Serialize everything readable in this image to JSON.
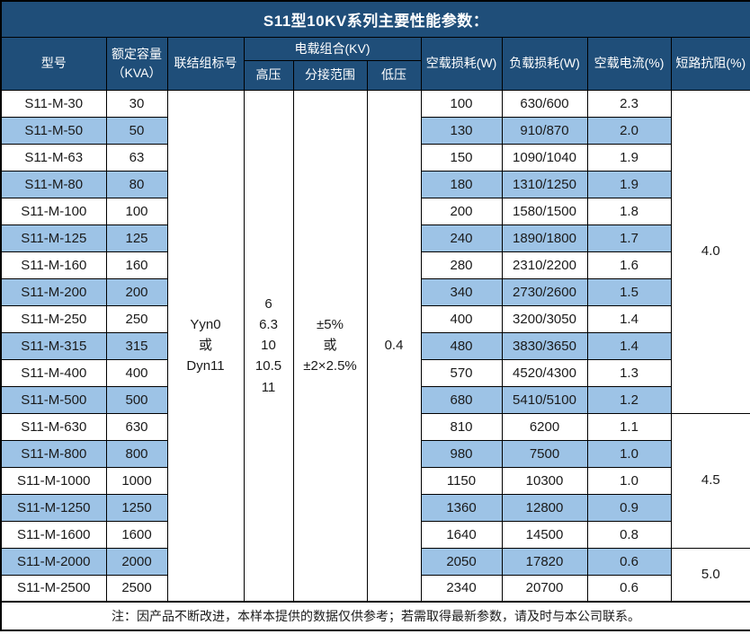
{
  "title": "S11型10KV系列主要性能参数：",
  "colors": {
    "header_bg": "#1F4E79",
    "row_alt_bg": "#9DC3E6",
    "border": "#000000",
    "header_text": "#FFFFFF"
  },
  "header": {
    "model": "型号",
    "capacity": "额定容量\n（KVA）",
    "connection": "联结组标号",
    "voltage_group": "电载组合(KV)",
    "high_voltage": "高压",
    "tap_range": "分接范围",
    "low_voltage": "低压",
    "no_load_loss": "空载损耗(W)",
    "load_loss": "负载损耗(W)",
    "no_load_current": "空载电流(%)",
    "impedance": "短路抗阻(%)"
  },
  "merged": {
    "connection": "Yyn0\n或\nDyn11",
    "high_voltage": "6\n6.3\n10\n10.5\n11",
    "tap_range": "±5%\n或\n±2×2.5%",
    "low_voltage": "0.4"
  },
  "impedance_groups": [
    {
      "value": "4.0",
      "rows": 12
    },
    {
      "value": "4.5",
      "rows": 5
    },
    {
      "value": "5.0",
      "rows": 2
    }
  ],
  "rows": [
    {
      "model": "S11-M-30",
      "capacity": "30",
      "no_load_loss": "100",
      "load_loss": "630/600",
      "no_load_current": "2.3"
    },
    {
      "model": "S11-M-50",
      "capacity": "50",
      "no_load_loss": "130",
      "load_loss": "910/870",
      "no_load_current": "2.0"
    },
    {
      "model": "S11-M-63",
      "capacity": "63",
      "no_load_loss": "150",
      "load_loss": "1090/1040",
      "no_load_current": "1.9"
    },
    {
      "model": "S11-M-80",
      "capacity": "80",
      "no_load_loss": "180",
      "load_loss": "1310/1250",
      "no_load_current": "1.9"
    },
    {
      "model": "S11-M-100",
      "capacity": "100",
      "no_load_loss": "200",
      "load_loss": "1580/1500",
      "no_load_current": "1.8"
    },
    {
      "model": "S11-M-125",
      "capacity": "125",
      "no_load_loss": "240",
      "load_loss": "1890/1800",
      "no_load_current": "1.7"
    },
    {
      "model": "S11-M-160",
      "capacity": "160",
      "no_load_loss": "280",
      "load_loss": "2310/2200",
      "no_load_current": "1.6"
    },
    {
      "model": "S11-M-200",
      "capacity": "200",
      "no_load_loss": "340",
      "load_loss": "2730/2600",
      "no_load_current": "1.5"
    },
    {
      "model": "S11-M-250",
      "capacity": "250",
      "no_load_loss": "400",
      "load_loss": "3200/3050",
      "no_load_current": "1.4"
    },
    {
      "model": "S11-M-315",
      "capacity": "315",
      "no_load_loss": "480",
      "load_loss": "3830/3650",
      "no_load_current": "1.4"
    },
    {
      "model": "S11-M-400",
      "capacity": "400",
      "no_load_loss": "570",
      "load_loss": "4520/4300",
      "no_load_current": "1.3"
    },
    {
      "model": "S11-M-500",
      "capacity": "500",
      "no_load_loss": "680",
      "load_loss": "5410/5100",
      "no_load_current": "1.2"
    },
    {
      "model": "S11-M-630",
      "capacity": "630",
      "no_load_loss": "810",
      "load_loss": "6200",
      "no_load_current": "1.1"
    },
    {
      "model": "S11-M-800",
      "capacity": "800",
      "no_load_loss": "980",
      "load_loss": "7500",
      "no_load_current": "1.0"
    },
    {
      "model": "S11-M-1000",
      "capacity": "1000",
      "no_load_loss": "1150",
      "load_loss": "10300",
      "no_load_current": "1.0"
    },
    {
      "model": "S11-M-1250",
      "capacity": "1250",
      "no_load_loss": "1360",
      "load_loss": "12800",
      "no_load_current": "0.9"
    },
    {
      "model": "S11-M-1600",
      "capacity": "1600",
      "no_load_loss": "1640",
      "load_loss": "14500",
      "no_load_current": "0.8"
    },
    {
      "model": "S11-M-2000",
      "capacity": "2000",
      "no_load_loss": "2050",
      "load_loss": "17820",
      "no_load_current": "0.6"
    },
    {
      "model": "S11-M-2500",
      "capacity": "2500",
      "no_load_loss": "2340",
      "load_loss": "20700",
      "no_load_current": "0.6"
    }
  ],
  "footer_note": "注：因产品不断改进，本样本提供的数据仅供参考；若需取得最新参数，请及时与本公司联系。"
}
